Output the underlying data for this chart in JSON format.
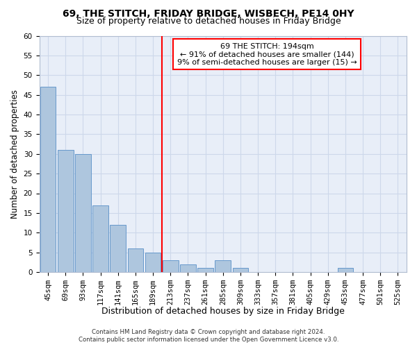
{
  "title": "69, THE STITCH, FRIDAY BRIDGE, WISBECH, PE14 0HY",
  "subtitle": "Size of property relative to detached houses in Friday Bridge",
  "xlabel": "Distribution of detached houses by size in Friday Bridge",
  "ylabel": "Number of detached properties",
  "categories": [
    "45sqm",
    "69sqm",
    "93sqm",
    "117sqm",
    "141sqm",
    "165sqm",
    "189sqm",
    "213sqm",
    "237sqm",
    "261sqm",
    "285sqm",
    "309sqm",
    "333sqm",
    "357sqm",
    "381sqm",
    "405sqm",
    "429sqm",
    "453sqm",
    "477sqm",
    "501sqm",
    "525sqm"
  ],
  "values": [
    47,
    31,
    30,
    17,
    12,
    6,
    5,
    3,
    2,
    1,
    3,
    1,
    0,
    0,
    0,
    0,
    0,
    1,
    0,
    0,
    0
  ],
  "bar_color": "#aec6de",
  "bar_edge_color": "#6699cc",
  "grid_color": "#cdd8ea",
  "background_color": "#e8eef8",
  "red_line_index": 6,
  "red_line_label": "69 THE STITCH: 194sqm",
  "annotation_line1": "← 91% of detached houses are smaller (144)",
  "annotation_line2": "9% of semi-detached houses are larger (15) →",
  "ylim": [
    0,
    60
  ],
  "yticks": [
    0,
    5,
    10,
    15,
    20,
    25,
    30,
    35,
    40,
    45,
    50,
    55,
    60
  ],
  "footer_line1": "Contains HM Land Registry data © Crown copyright and database right 2024.",
  "footer_line2": "Contains public sector information licensed under the Open Government Licence v3.0.",
  "title_fontsize": 10,
  "subtitle_fontsize": 9,
  "tick_fontsize": 7.5,
  "ylabel_fontsize": 8.5,
  "xlabel_fontsize": 9
}
